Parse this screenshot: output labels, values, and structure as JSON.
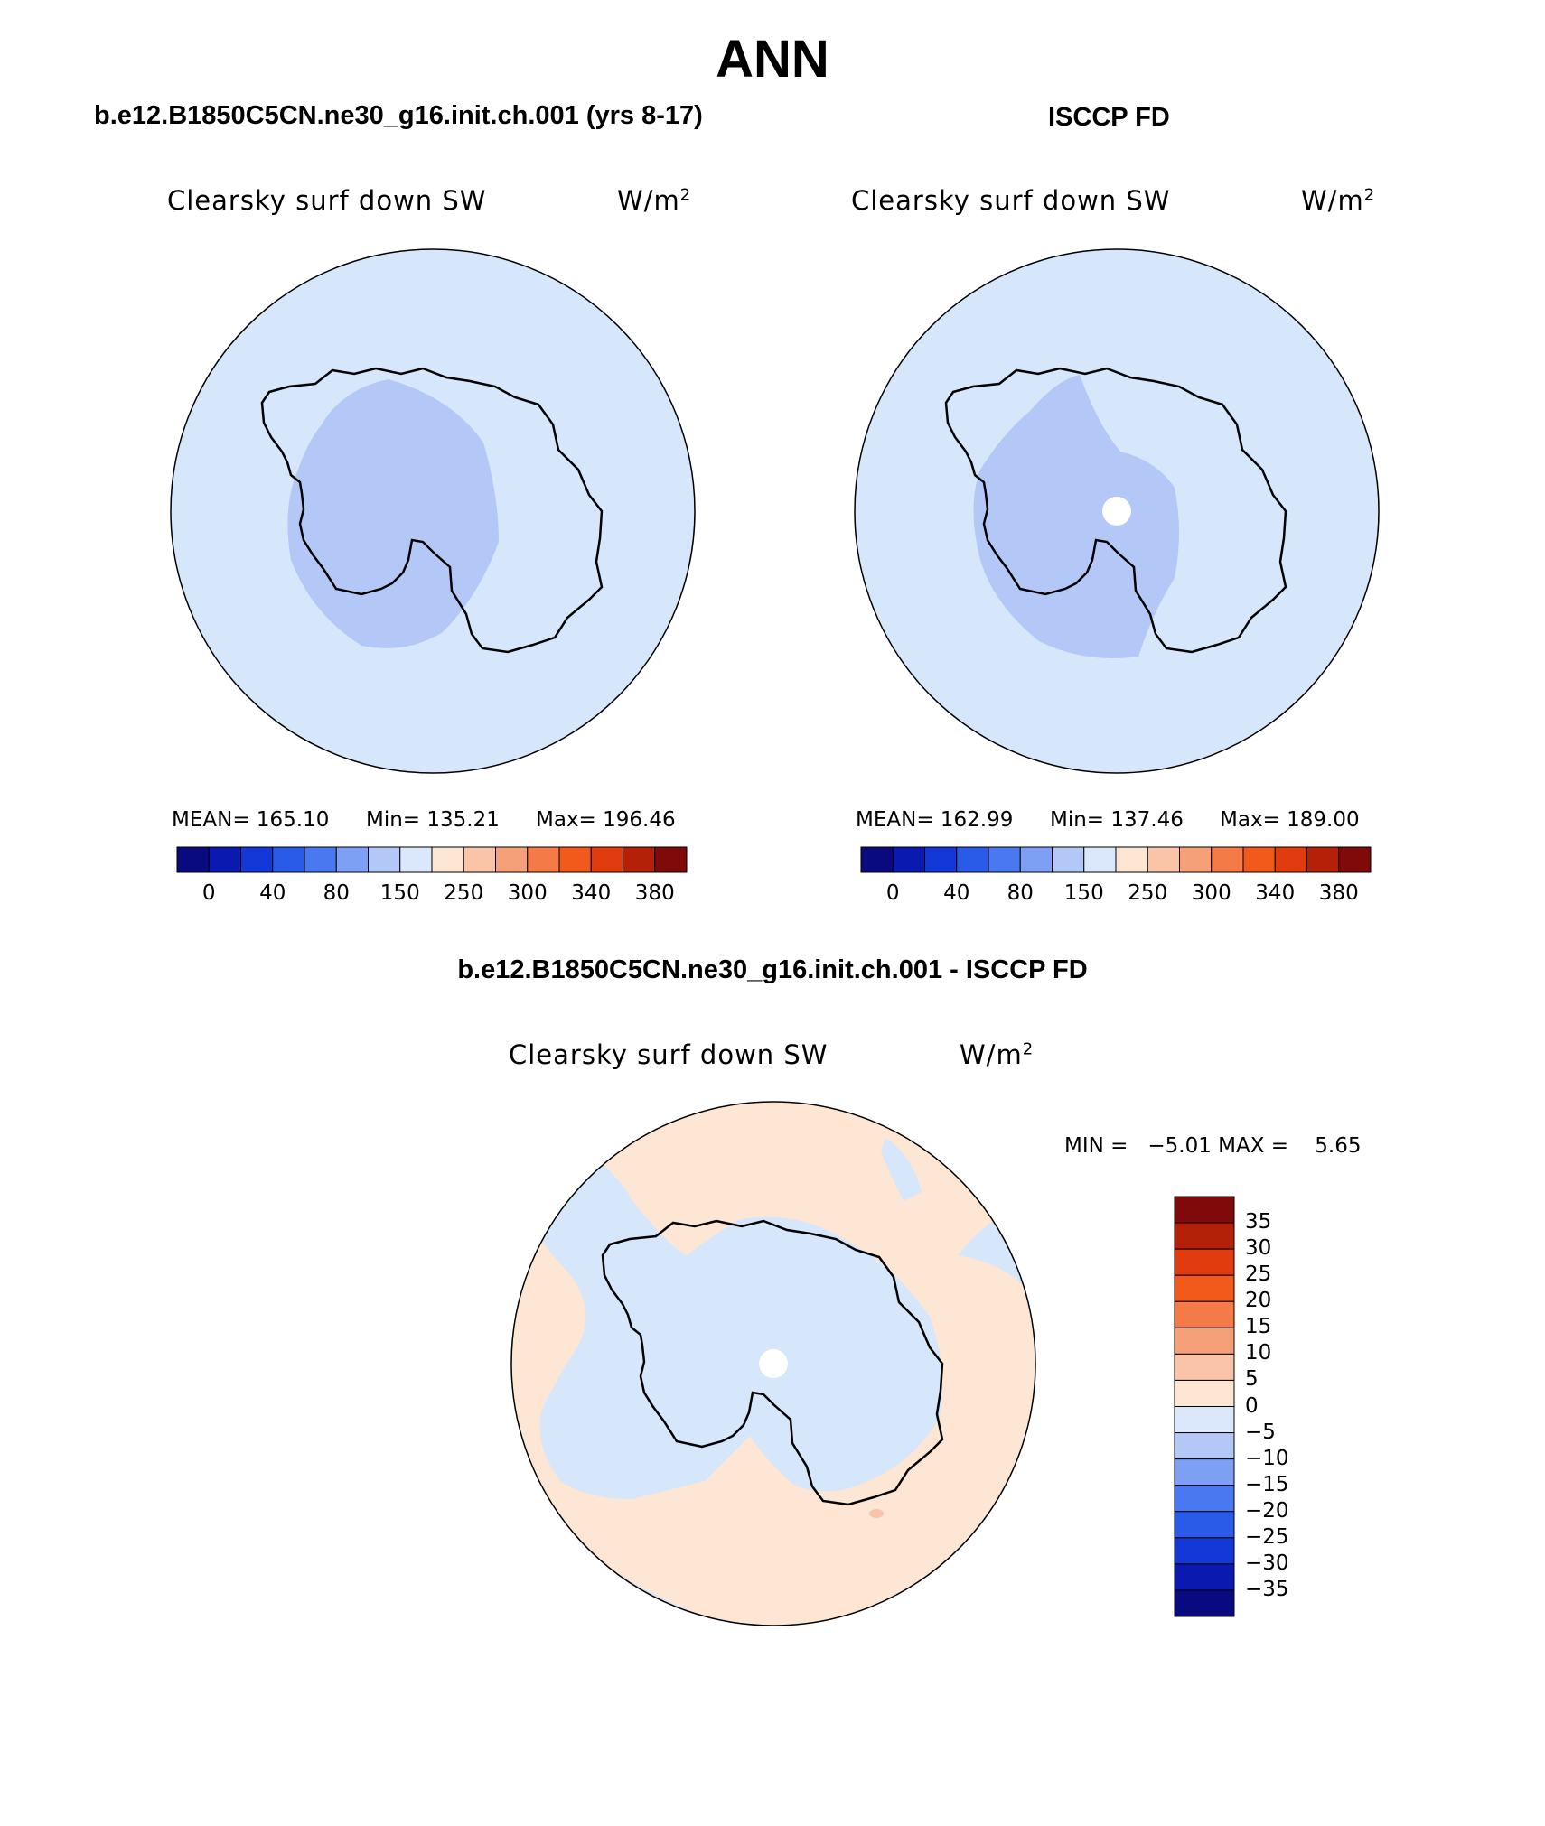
{
  "title": "ANN",
  "panels": [
    {
      "id": "model",
      "subtitle": "b.e12.B1850C5CN.ne30_g16.init.ch.001 (yrs 8-17)",
      "variable": "Clearsky surf down SW",
      "units": "W/m",
      "units_sup": "2",
      "stats": {
        "mean": "MEAN= 165.10",
        "min": "Min= 135.21",
        "max": "Max= 196.46"
      }
    },
    {
      "id": "obs",
      "subtitle": "ISCCP FD",
      "variable": "Clearsky surf down SW",
      "units": "W/m",
      "units_sup": "2",
      "stats": {
        "mean": "MEAN= 162.99",
        "min": "Min= 137.46",
        "max": "Max= 189.00"
      }
    },
    {
      "id": "diff",
      "subtitle": "b.e12.B1850C5CN.ne30_g16.init.ch.001 - ISCCP FD",
      "variable": "Clearsky surf down SW",
      "units": "W/m",
      "units_sup": "2",
      "stats": {
        "minmax": "MIN =   −5.01 MAX =    5.65"
      }
    }
  ],
  "colorbar_main": {
    "colors": [
      "#0a0a80",
      "#0a1ab0",
      "#1438d8",
      "#2a5ae8",
      "#4a78f0",
      "#7ea0f4",
      "#b4c8f8",
      "#dbe8fb",
      "#fde6d4",
      "#f9c4a8",
      "#f6a07a",
      "#f47a48",
      "#f25a1c",
      "#e03c10",
      "#b42008",
      "#800a0a"
    ],
    "ticks": [
      "0",
      "40",
      "80",
      "150",
      "250",
      "300",
      "340",
      "380"
    ]
  },
  "colorbar_diff": {
    "colors": [
      "#0a0a80",
      "#0a1ab0",
      "#1438d8",
      "#2a5ae8",
      "#4a78f0",
      "#7ea0f4",
      "#b4c8f8",
      "#dbe8fb",
      "#fde6d4",
      "#f9c4a8",
      "#f6a07a",
      "#f47a48",
      "#f25a1c",
      "#e03c10",
      "#b42008",
      "#800a0a"
    ],
    "ticks": [
      "35",
      "30",
      "25",
      "20",
      "15",
      "10",
      "5",
      "0",
      "−5",
      "−10",
      "−15",
      "−20",
      "−25",
      "−30",
      "−35"
    ]
  },
  "map_colors": {
    "ocean": "#d6e6fb",
    "inner": "#b4c8f8",
    "diff_pos": "#fde6d4",
    "diff_neg": "#d6e6fb",
    "missing": "#ffffff",
    "coast": "#000000"
  }
}
